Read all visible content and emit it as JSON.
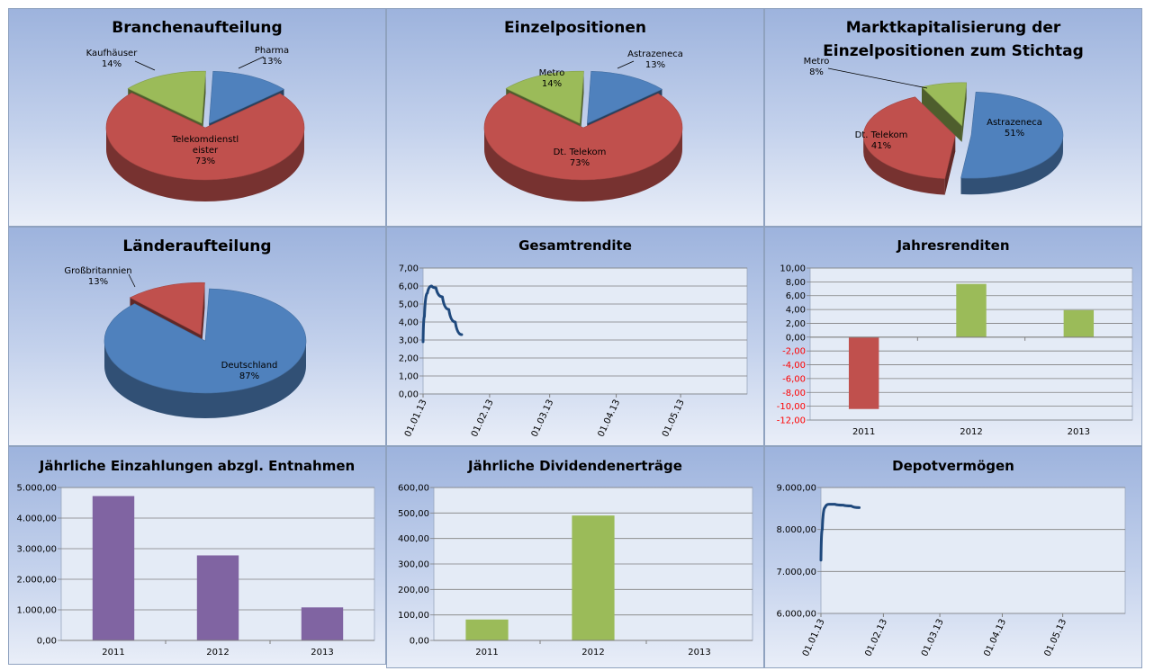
{
  "colors": {
    "blue": "#4f81bd",
    "red": "#c0504d",
    "green": "#9bbb59",
    "purple": "#8064a2",
    "line": "#1f497d",
    "negative_tick": "#ff0000"
  },
  "chart_data": [
    {
      "id": "branche",
      "type": "pie",
      "title": "Branchenaufteilung",
      "labels": [
        "Pharma",
        "Telekomdienstleister",
        "Kaufhäuser"
      ],
      "values": [
        13,
        73,
        14
      ],
      "label_lines": [
        [
          "Pharma",
          "13%"
        ],
        [
          "Telekomdienstl",
          "eister",
          "73%"
        ],
        [
          "Kaufhäuser",
          "14%"
        ]
      ],
      "colors": [
        "#4f81bd",
        "#c0504d",
        "#9bbb59"
      ]
    },
    {
      "id": "einzel",
      "type": "pie",
      "title": "Einzelpositionen",
      "labels": [
        "Astrazeneca",
        "Dt. Telekom",
        "Metro"
      ],
      "values": [
        13,
        73,
        14
      ],
      "label_lines": [
        [
          "Astrazeneca",
          "13%"
        ],
        [
          "Dt. Telekom",
          "73%"
        ],
        [
          "Metro",
          "14%"
        ]
      ],
      "colors": [
        "#4f81bd",
        "#c0504d",
        "#9bbb59"
      ]
    },
    {
      "id": "marktkap",
      "type": "pie",
      "title": "Marktkapitalisierung der Einzelpositionen zum Stichtag",
      "title_lines": [
        "Marktkapitalisierung der",
        "Einzelpositionen zum Stichtag"
      ],
      "labels": [
        "Astrazeneca",
        "Dt. Telekom",
        "Metro"
      ],
      "values": [
        51,
        41,
        8
      ],
      "label_lines": [
        [
          "Astrazeneca",
          "51%"
        ],
        [
          "Dt. Telekom",
          "41%"
        ],
        [
          "Metro",
          "8%"
        ]
      ],
      "colors": [
        "#4f81bd",
        "#c0504d",
        "#9bbb59"
      ]
    },
    {
      "id": "laender",
      "type": "pie",
      "title": "Länderaufteilung",
      "labels": [
        "Deutschland",
        "Großbritannien"
      ],
      "values": [
        87,
        13
      ],
      "label_lines": [
        [
          "Deutschland",
          "87%"
        ],
        [
          "Großbritannien",
          "13%"
        ]
      ],
      "colors": [
        "#4f81bd",
        "#c0504d"
      ]
    },
    {
      "id": "gesamt",
      "type": "line",
      "title": "Gesamtrendite",
      "x": [
        "01.01.13",
        "01.01.13",
        "03.01.13",
        "05.01.13",
        "07.01.13",
        "10.01.13",
        "13.01.13",
        "16.01.13",
        "19.01.13"
      ],
      "y": [
        2.9,
        4.3,
        5.6,
        6.0,
        5.9,
        5.4,
        4.7,
        4.0,
        3.3
      ],
      "ylim": [
        0,
        7
      ],
      "yticks": [
        "0,00",
        "1,00",
        "2,00",
        "3,00",
        "4,00",
        "5,00",
        "6,00",
        "7,00"
      ],
      "xticks": [
        "01.01.13",
        "01.02.13",
        "01.03.13",
        "01.04.13",
        "01.05.13"
      ],
      "series_color": "#1f497d"
    },
    {
      "id": "jahres",
      "type": "bar",
      "title": "Jahresrenditen",
      "categories": [
        "2011",
        "2012",
        "2013"
      ],
      "values": [
        -10.4,
        7.7,
        3.9
      ],
      "bar_colors": [
        "#c0504d",
        "#9bbb59",
        "#9bbb59"
      ],
      "ylim": [
        -12,
        10
      ],
      "yticks": [
        "-12,00",
        "-10,00",
        "-8,00",
        "-6,00",
        "-4,00",
        "-2,00",
        "0,00",
        "2,00",
        "4,00",
        "6,00",
        "8,00",
        "10,00"
      ]
    },
    {
      "id": "einzahlungen",
      "type": "bar",
      "title": "Jährliche Einzahlungen abzgl. Entnahmen",
      "categories": [
        "2011",
        "2012",
        "2013"
      ],
      "values": [
        4720,
        2780,
        1080
      ],
      "bar_colors": [
        "#8064a2",
        "#8064a2",
        "#8064a2"
      ],
      "ylim": [
        0,
        5000
      ],
      "yticks": [
        "0,00",
        "1.000,00",
        "2.000,00",
        "3.000,00",
        "4.000,00",
        "5.000,00"
      ]
    },
    {
      "id": "dividenden",
      "type": "bar",
      "title": "Jährliche Dividendenerträge",
      "categories": [
        "2011",
        "2012",
        "2013"
      ],
      "values": [
        82,
        490,
        0
      ],
      "bar_colors": [
        "#9bbb59",
        "#9bbb59",
        "#9bbb59"
      ],
      "ylim": [
        0,
        600
      ],
      "yticks": [
        "0,00",
        "100,00",
        "200,00",
        "300,00",
        "400,00",
        "500,00",
        "600,00"
      ]
    },
    {
      "id": "depot",
      "type": "line",
      "title": "Depotvermögen",
      "x": [
        "01.01.13",
        "01.01.13",
        "03.01.13",
        "05.01.13",
        "08.01.13",
        "12.01.13",
        "16.01.13",
        "20.01.13"
      ],
      "y": [
        7270,
        8000,
        8520,
        8600,
        8600,
        8580,
        8560,
        8520
      ],
      "ylim": [
        6000,
        9000
      ],
      "yticks": [
        "6.000,00",
        "7.000,00",
        "8.000,00",
        "9.000,00"
      ],
      "xticks": [
        "01.01.13",
        "01.02.13",
        "01.03.13",
        "01.04.13",
        "01.05.13"
      ],
      "series_color": "#1f497d"
    }
  ]
}
